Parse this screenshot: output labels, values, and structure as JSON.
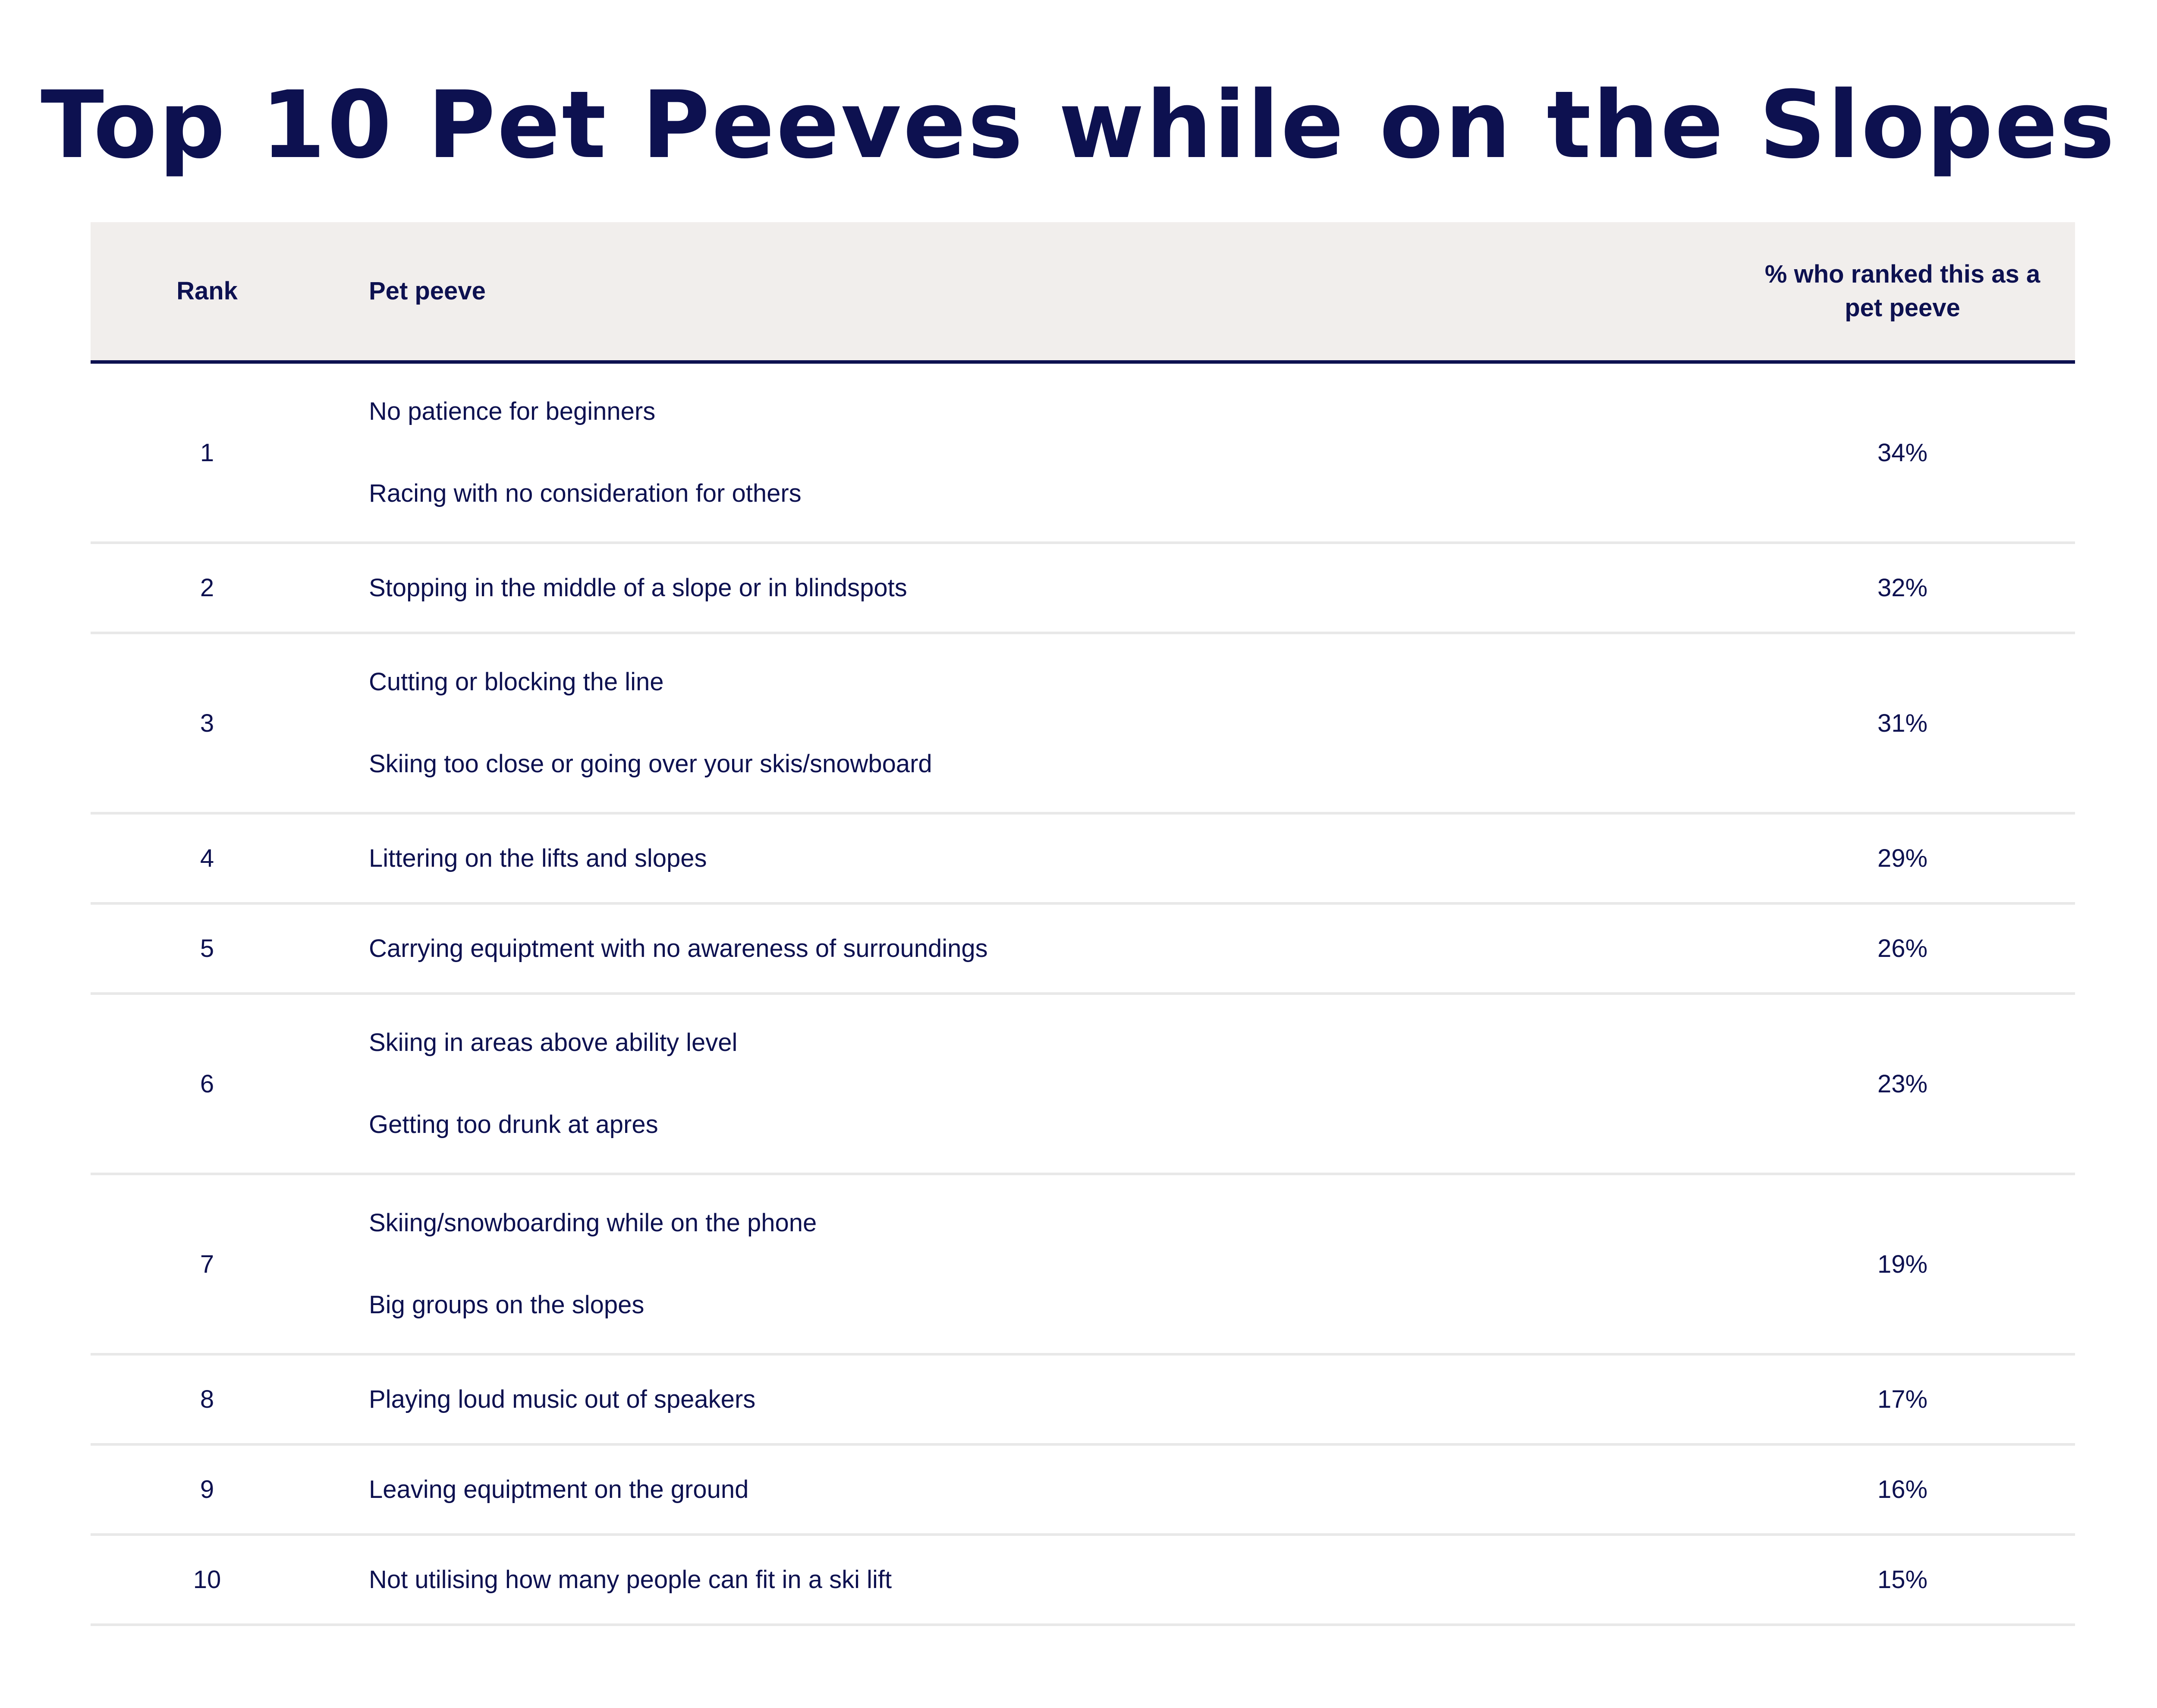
{
  "chart_data": {
    "type": "table",
    "title": "Top 10 Pet Peeves while on the Slopes",
    "columns": [
      "Rank",
      "Pet peeve",
      "% who ranked this as a pet peeve"
    ],
    "rows": [
      {
        "rank": "1",
        "peeves": [
          "No patience for beginners",
          "Racing with no consideration for others"
        ],
        "pct": "34%"
      },
      {
        "rank": "2",
        "peeves": [
          "Stopping in the middle of a slope or in blindspots"
        ],
        "pct": "32%"
      },
      {
        "rank": "3",
        "peeves": [
          "Cutting or blocking the line",
          "Skiing too close or going over your skis/snowboard"
        ],
        "pct": "31%"
      },
      {
        "rank": "4",
        "peeves": [
          "Littering on the lifts and slopes"
        ],
        "pct": "29%"
      },
      {
        "rank": "5",
        "peeves": [
          "Carrying equiptment with no awareness of surroundings"
        ],
        "pct": "26%"
      },
      {
        "rank": "6",
        "peeves": [
          "Skiing in areas above ability level",
          "Getting too drunk at apres"
        ],
        "pct": "23%"
      },
      {
        "rank": "7",
        "peeves": [
          "Skiing/snowboarding while on the phone",
          "Big groups on the slopes"
        ],
        "pct": "19%"
      },
      {
        "rank": "8",
        "peeves": [
          "Playing loud music out of speakers"
        ],
        "pct": "17%"
      },
      {
        "rank": "9",
        "peeves": [
          "Leaving equiptment on the ground"
        ],
        "pct": "16%"
      },
      {
        "rank": "10",
        "peeves": [
          "Not utilising how many people can fit in a ski lift"
        ],
        "pct": "15%"
      }
    ]
  },
  "colors": {
    "text": "#0d1150",
    "header_background": "#f1eeec",
    "header_rule": "#0d1150",
    "row_divider": "#e8e8e8"
  }
}
